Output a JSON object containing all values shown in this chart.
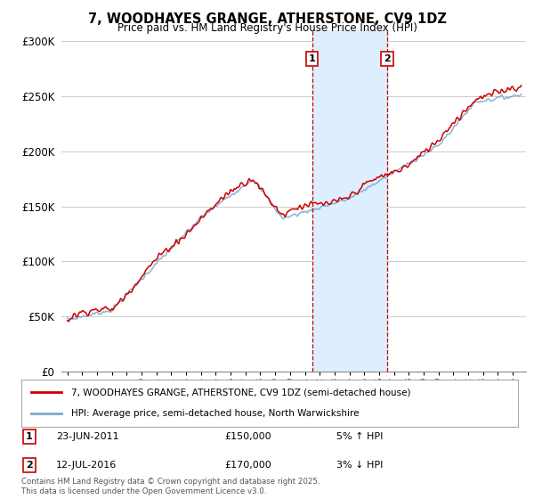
{
  "title": "7, WOODHAYES GRANGE, ATHERSTONE, CV9 1DZ",
  "subtitle": "Price paid vs. HM Land Registry's House Price Index (HPI)",
  "legend_line1": "7, WOODHAYES GRANGE, ATHERSTONE, CV9 1DZ (semi-detached house)",
  "legend_line2": "HPI: Average price, semi-detached house, North Warwickshire",
  "annotation1_label": "1",
  "annotation1_date": "23-JUN-2011",
  "annotation1_price": "£150,000",
  "annotation1_hpi": "5% ↑ HPI",
  "annotation2_label": "2",
  "annotation2_date": "12-JUL-2016",
  "annotation2_price": "£170,000",
  "annotation2_hpi": "3% ↓ HPI",
  "footer": "Contains HM Land Registry data © Crown copyright and database right 2025.\nThis data is licensed under the Open Government Licence v3.0.",
  "red_color": "#cc0000",
  "blue_color": "#7aabcf",
  "shade_color": "#ddeeff",
  "vline_color": "#cc0000",
  "annotation_box_color": "#cc0000",
  "background_color": "#ffffff",
  "grid_color": "#cccccc",
  "ylim": [
    0,
    310000
  ],
  "yticks": [
    0,
    50000,
    100000,
    150000,
    200000,
    250000,
    300000
  ],
  "ytick_labels": [
    "£0",
    "£50K",
    "£100K",
    "£150K",
    "£200K",
    "£250K",
    "£300K"
  ],
  "shade_start_year": 2011.48,
  "shade_end_year": 2016.54,
  "vline1_year": 2011.48,
  "vline2_year": 2016.54,
  "xlim_left": 1994.6,
  "xlim_right": 2025.9
}
